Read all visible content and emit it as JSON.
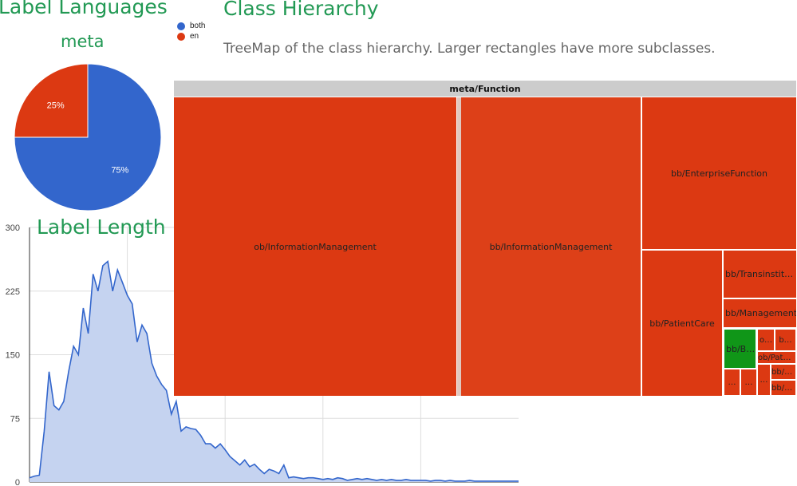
{
  "label_languages": {
    "title": "Label Languages",
    "subtitle": "meta"
  },
  "label_length": {
    "title": "Label Length"
  },
  "class_hierarchy": {
    "title": "Class Hierarchy",
    "description": "TreeMap of the class hierarchy. Larger rectangles have more subclasses.",
    "root": "meta/Function",
    "cells": [
      "ob/InformationManagement",
      "bb/InformationManagement",
      "bb/EnterpriseFunction",
      "bb/PatientCare",
      "bb/Transinstit…",
      "bb/Management",
      "bb/B…",
      "o…",
      "b…",
      "ob/Pat…",
      "bb/…",
      "bb/…",
      "…",
      "…",
      "…"
    ]
  },
  "colors": {
    "title_green": "#229954",
    "both": "#3366cc",
    "en": "#dc3912",
    "treemap_red": "#dc3912",
    "treemap_green": "#109618"
  },
  "chart_data": [
    {
      "type": "pie",
      "title": "meta",
      "legend_position": "top-right",
      "labels": [
        "both",
        "en"
      ],
      "values": [
        75,
        25
      ],
      "slice_labels": [
        "75%",
        "25%"
      ]
    },
    {
      "type": "area",
      "title": "Label Length",
      "ylim": [
        0,
        300
      ],
      "yticks": [
        "0",
        "75",
        "150",
        "225",
        "300"
      ],
      "xlim": [
        0,
        100
      ],
      "grid": true,
      "x": [
        0,
        1,
        2,
        3,
        4,
        5,
        6,
        7,
        8,
        9,
        10,
        11,
        12,
        13,
        14,
        15,
        16,
        17,
        18,
        19,
        20,
        21,
        22,
        23,
        24,
        25,
        26,
        27,
        28,
        29,
        30,
        31,
        32,
        33,
        34,
        35,
        36,
        37,
        38,
        39,
        40,
        41,
        42,
        43,
        44,
        45,
        46,
        47,
        48,
        49,
        50,
        51,
        52,
        53,
        54,
        55,
        56,
        57,
        58,
        59,
        60,
        61,
        62,
        63,
        64,
        65,
        66,
        67,
        68,
        69,
        70,
        71,
        72,
        73,
        74,
        75,
        76,
        77,
        78,
        79,
        80,
        81,
        82,
        83,
        84,
        85,
        86,
        87,
        88,
        89,
        90,
        91,
        92,
        93,
        94,
        95,
        96,
        97,
        98,
        99,
        100
      ],
      "y": [
        5,
        7,
        8,
        60,
        130,
        90,
        85,
        95,
        130,
        160,
        150,
        205,
        175,
        245,
        225,
        255,
        260,
        225,
        250,
        235,
        220,
        210,
        165,
        185,
        175,
        140,
        125,
        115,
        108,
        80,
        95,
        60,
        65,
        63,
        62,
        55,
        45,
        45,
        40,
        45,
        38,
        30,
        25,
        20,
        26,
        18,
        21,
        15,
        10,
        15,
        13,
        10,
        20,
        5,
        6,
        5,
        4,
        5,
        5,
        4,
        3,
        4,
        3,
        5,
        4,
        2,
        3,
        4,
        3,
        4,
        3,
        2,
        3,
        2,
        3,
        2,
        2,
        3,
        2,
        2,
        2,
        2,
        1,
        2,
        2,
        1,
        2,
        1,
        1,
        1,
        2,
        1,
        1,
        1,
        1,
        1,
        1,
        1,
        1,
        1,
        1
      ]
    }
  ]
}
